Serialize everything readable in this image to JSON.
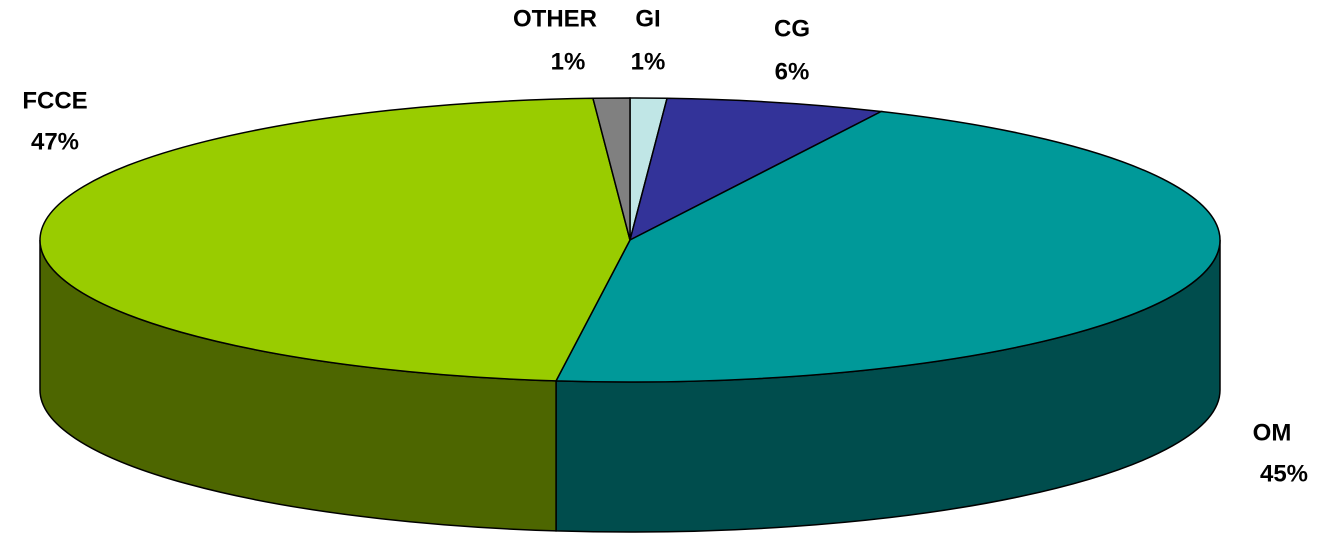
{
  "chart_data": {
    "type": "pie",
    "categories": [
      "GI",
      "CG",
      "OM",
      "FCCE",
      "OTHER"
    ],
    "values": [
      1,
      6,
      45,
      47,
      1
    ],
    "value_labels": [
      "1%",
      "6%",
      "45%",
      "47%",
      "1%"
    ],
    "colors": [
      "#c0e6e6",
      "#333399",
      "#009999",
      "#99cc00",
      "#808080"
    ]
  }
}
